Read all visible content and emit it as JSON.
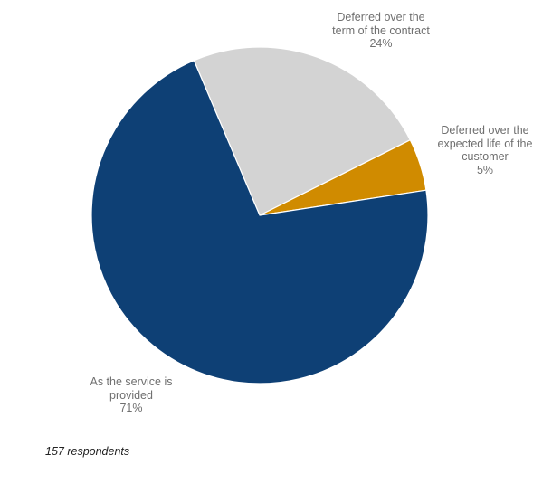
{
  "chart_data": {
    "type": "pie",
    "start_angle_deg": -23,
    "direction": "clockwise",
    "slices": [
      {
        "label_lines": [
          "Deferred over the",
          "term of the contract"
        ],
        "value": 24,
        "value_label": "24%",
        "color": "#d3d3d3"
      },
      {
        "label_lines": [
          "Deferred over the",
          "expected life of the",
          "customer"
        ],
        "value": 5,
        "value_label": "5%",
        "color": "#d08b00"
      },
      {
        "label_lines": [
          "As the service is",
          "provided"
        ],
        "value": 71,
        "value_label": "71%",
        "color": "#0e4075"
      }
    ],
    "slice_border_color": "#ffffff"
  },
  "footnote": "157 respondents"
}
